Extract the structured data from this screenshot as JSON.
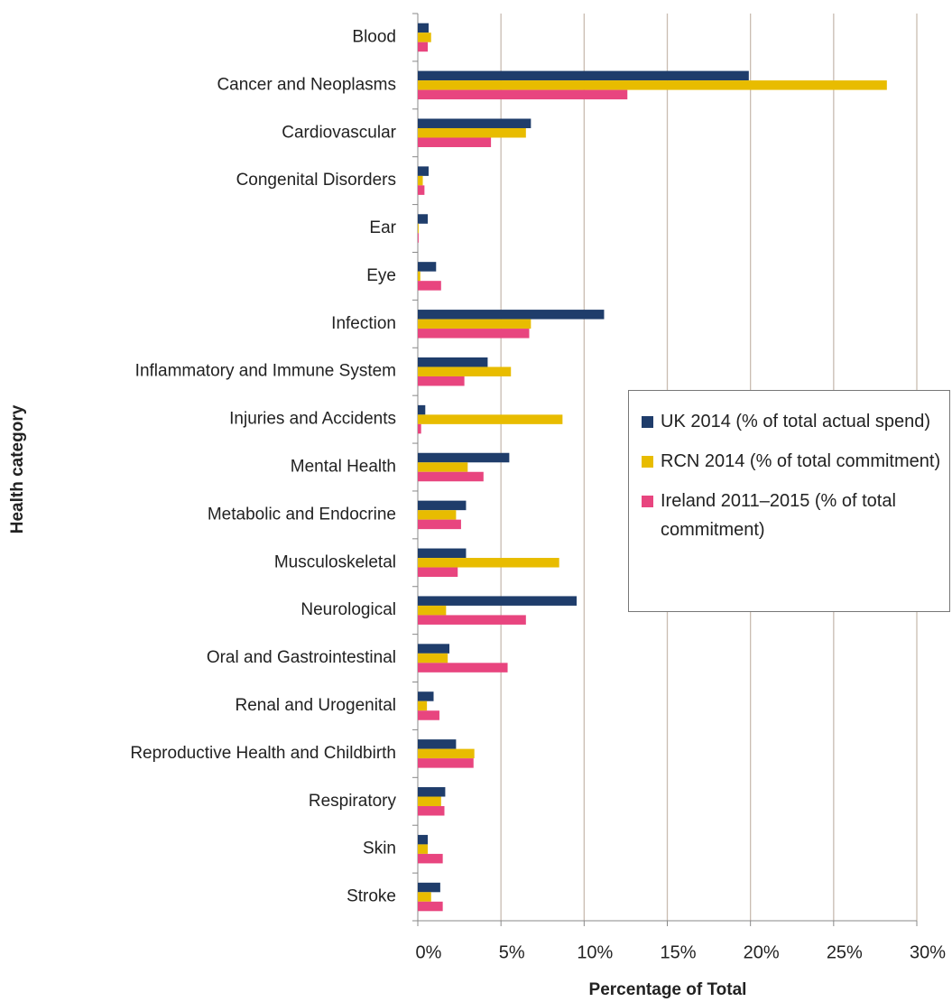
{
  "chart_data": {
    "type": "bar",
    "orientation": "horizontal",
    "xlabel": "Percentage of Total",
    "ylabel": "Health category",
    "categories": [
      "Blood",
      "Cancer and Neoplasms",
      "Cardiovascular",
      "Congenital Disorders",
      "Ear",
      "Eye",
      "Infection",
      "Inflammatory and Immune System",
      "Injuries and Accidents",
      "Mental Health",
      "Metabolic and Endocrine",
      "Musculoskeletal",
      "Neurological",
      "Oral and Gastrointestinal",
      "Renal and Urogenital",
      "Reproductive Health and Childbirth",
      "Respiratory",
      "Skin",
      "Stroke"
    ],
    "series": [
      {
        "name": "UK 2014 (% of total actual spend)",
        "color": "#1f3d6b",
        "values": [
          0.65,
          19.9,
          6.8,
          0.65,
          0.6,
          1.1,
          11.2,
          4.2,
          0.45,
          5.5,
          2.9,
          2.9,
          9.55,
          1.9,
          0.95,
          2.3,
          1.65,
          0.6,
          1.35
        ]
      },
      {
        "name": "RCN 2014 (% of total commitment)",
        "color": "#e8bc00",
        "values": [
          0.8,
          28.2,
          6.5,
          0.3,
          0.05,
          0.15,
          6.8,
          5.6,
          8.7,
          3.0,
          2.3,
          8.5,
          1.7,
          1.8,
          0.55,
          3.4,
          1.4,
          0.6,
          0.8
        ]
      },
      {
        "name": "Ireland 2011–2015 (% of total commitment)",
        "color": "#e8457f",
        "values": [
          0.6,
          12.6,
          4.4,
          0.4,
          0.05,
          1.4,
          6.7,
          2.8,
          0.2,
          3.95,
          2.6,
          2.4,
          6.5,
          5.4,
          1.3,
          3.35,
          1.6,
          1.5,
          1.5
        ]
      }
    ],
    "xlim": [
      0,
      30
    ],
    "xticks": [
      {
        "value": 0,
        "label": "0%"
      },
      {
        "value": 5,
        "label": "5%"
      },
      {
        "value": 10,
        "label": "10%"
      },
      {
        "value": 15,
        "label": "15%"
      },
      {
        "value": 20,
        "label": "20%"
      },
      {
        "value": 25,
        "label": "25%"
      },
      {
        "value": 30,
        "label": "30%"
      }
    ],
    "grid": true,
    "legend": "right"
  }
}
